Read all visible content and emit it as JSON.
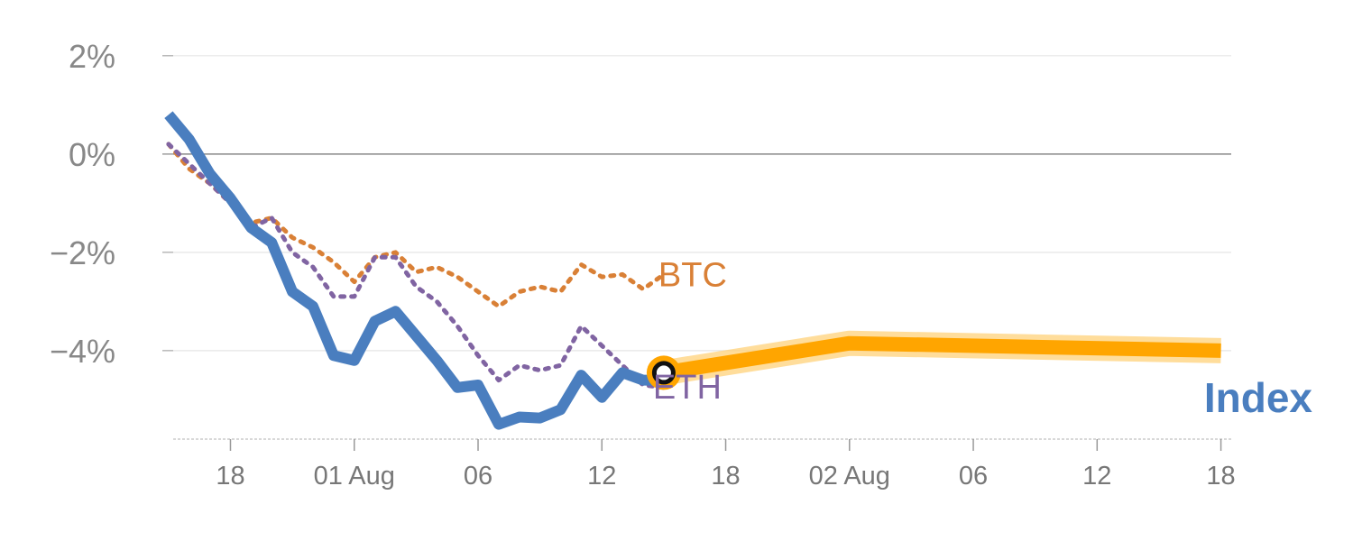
{
  "chart_data": {
    "type": "line",
    "title": "",
    "xlabel": "",
    "ylabel": "",
    "y_ticks": [
      "2%",
      "0%",
      "−2%",
      "−4%"
    ],
    "y_tick_values": [
      2,
      0,
      -2,
      -4
    ],
    "ylim": [
      -5.8,
      2.4
    ],
    "zero_line": true,
    "x_ticks": [
      "18",
      "01 Aug",
      "06",
      "12",
      "18",
      "02 Aug",
      "06",
      "12",
      "18"
    ],
    "x_tick_positions": [
      3,
      9,
      15,
      21,
      27,
      33,
      39,
      45,
      51
    ],
    "xlim": [
      -0.3,
      51.5
    ],
    "series": [
      {
        "name": "Index",
        "color": "#4a7ebf",
        "style": "solid",
        "x": [
          0,
          1,
          2,
          3,
          4,
          5,
          6,
          7,
          8,
          9,
          10,
          11,
          12,
          13,
          14,
          15,
          16,
          17,
          18,
          19,
          20,
          21,
          22,
          23,
          24
        ],
        "values": [
          0.8,
          0.3,
          -0.4,
          -0.9,
          -1.5,
          -1.8,
          -2.8,
          -3.1,
          -4.1,
          -4.2,
          -3.4,
          -3.2,
          -3.7,
          -4.2,
          -4.75,
          -4.7,
          -5.5,
          -5.35,
          -5.37,
          -5.2,
          -4.5,
          -4.95,
          -4.45,
          -4.6,
          -4.6
        ]
      },
      {
        "name": "BTC",
        "color": "#d98036",
        "style": "dotted",
        "x": [
          0,
          1,
          2,
          3,
          4,
          5,
          6,
          7,
          8,
          9,
          10,
          11,
          12,
          13,
          14,
          15,
          16,
          17,
          18,
          19,
          20,
          21,
          22,
          23,
          24
        ],
        "values": [
          0.2,
          -0.3,
          -0.6,
          -1.0,
          -1.4,
          -1.3,
          -1.7,
          -1.9,
          -2.2,
          -2.6,
          -2.1,
          -2.0,
          -2.4,
          -2.3,
          -2.5,
          -2.8,
          -3.1,
          -2.8,
          -2.7,
          -2.8,
          -2.25,
          -2.5,
          -2.45,
          -2.75,
          -2.45
        ]
      },
      {
        "name": "ETH",
        "color": "#8064a2",
        "style": "dotted",
        "x": [
          0,
          1,
          2,
          3,
          4,
          5,
          6,
          7,
          8,
          9,
          10,
          11,
          12,
          13,
          14,
          15,
          16,
          17,
          18,
          19,
          20,
          21,
          22,
          23,
          24
        ],
        "values": [
          0.2,
          -0.2,
          -0.6,
          -1.0,
          -1.5,
          -1.3,
          -2.0,
          -2.3,
          -2.9,
          -2.9,
          -2.1,
          -2.1,
          -2.7,
          -3.0,
          -3.5,
          -4.1,
          -4.6,
          -4.3,
          -4.4,
          -4.3,
          -3.5,
          -3.9,
          -4.3,
          -4.7,
          -4.75
        ]
      },
      {
        "name": "",
        "color": "#ffa500",
        "style": "thick",
        "x": [
          24,
          33,
          51
        ],
        "values": [
          -4.45,
          -3.85,
          -4.0
        ]
      }
    ],
    "marker": {
      "x": 24,
      "y": -4.45,
      "fill": "#ffffff",
      "ring": "#ffa500",
      "outline": "#111111"
    },
    "labels": {
      "btc": "BTC",
      "eth": "ETH",
      "index": "Index"
    },
    "colors": {
      "grid": "#e6e6e6",
      "zero": "#888888",
      "axis": "#cccccc",
      "tick_mark": "#999999"
    }
  }
}
